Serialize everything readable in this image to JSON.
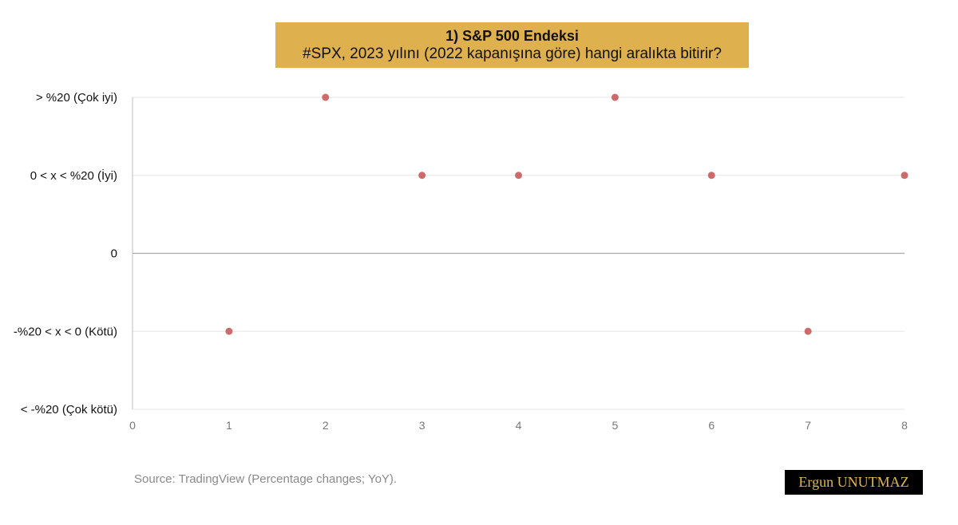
{
  "chart_data": {
    "type": "scatter",
    "title": "1) S&P 500 Endeksi",
    "subtitle": "#SPX, 2023 yılını (2022 kapanışına göre) hangi aralıkta bitirir?",
    "xlim": [
      0,
      8
    ],
    "x_ticks": [
      "0",
      "1",
      "2",
      "3",
      "4",
      "5",
      "6",
      "7",
      "8"
    ],
    "ylim": [
      -2,
      2
    ],
    "y_ticks": [
      {
        "value": 2,
        "label": "> %20 (Çok iyi)"
      },
      {
        "value": 1,
        "label": "0 < x < %20 (İyi)"
      },
      {
        "value": 0,
        "label": "0"
      },
      {
        "value": -1,
        "label": "-%20 < x < 0 (Kötü)"
      },
      {
        "value": -2,
        "label": "< -%20 (Çok kötü)"
      }
    ],
    "points": [
      {
        "x": 1,
        "y": -1
      },
      {
        "x": 2,
        "y": 2
      },
      {
        "x": 3,
        "y": 1
      },
      {
        "x": 4,
        "y": 1
      },
      {
        "x": 5,
        "y": 2
      },
      {
        "x": 6,
        "y": 1
      },
      {
        "x": 7,
        "y": -1
      },
      {
        "x": 8,
        "y": 1
      }
    ],
    "grid": true,
    "marker_color": "#cd6b6b"
  },
  "footer": {
    "source": "Source: TradingView (Percentage changes; YoY).",
    "author": "Ergun UNUTMAZ"
  },
  "colors": {
    "title_bg": "#deb04e",
    "signature_bg": "#000000",
    "signature_text": "#e4b847"
  }
}
